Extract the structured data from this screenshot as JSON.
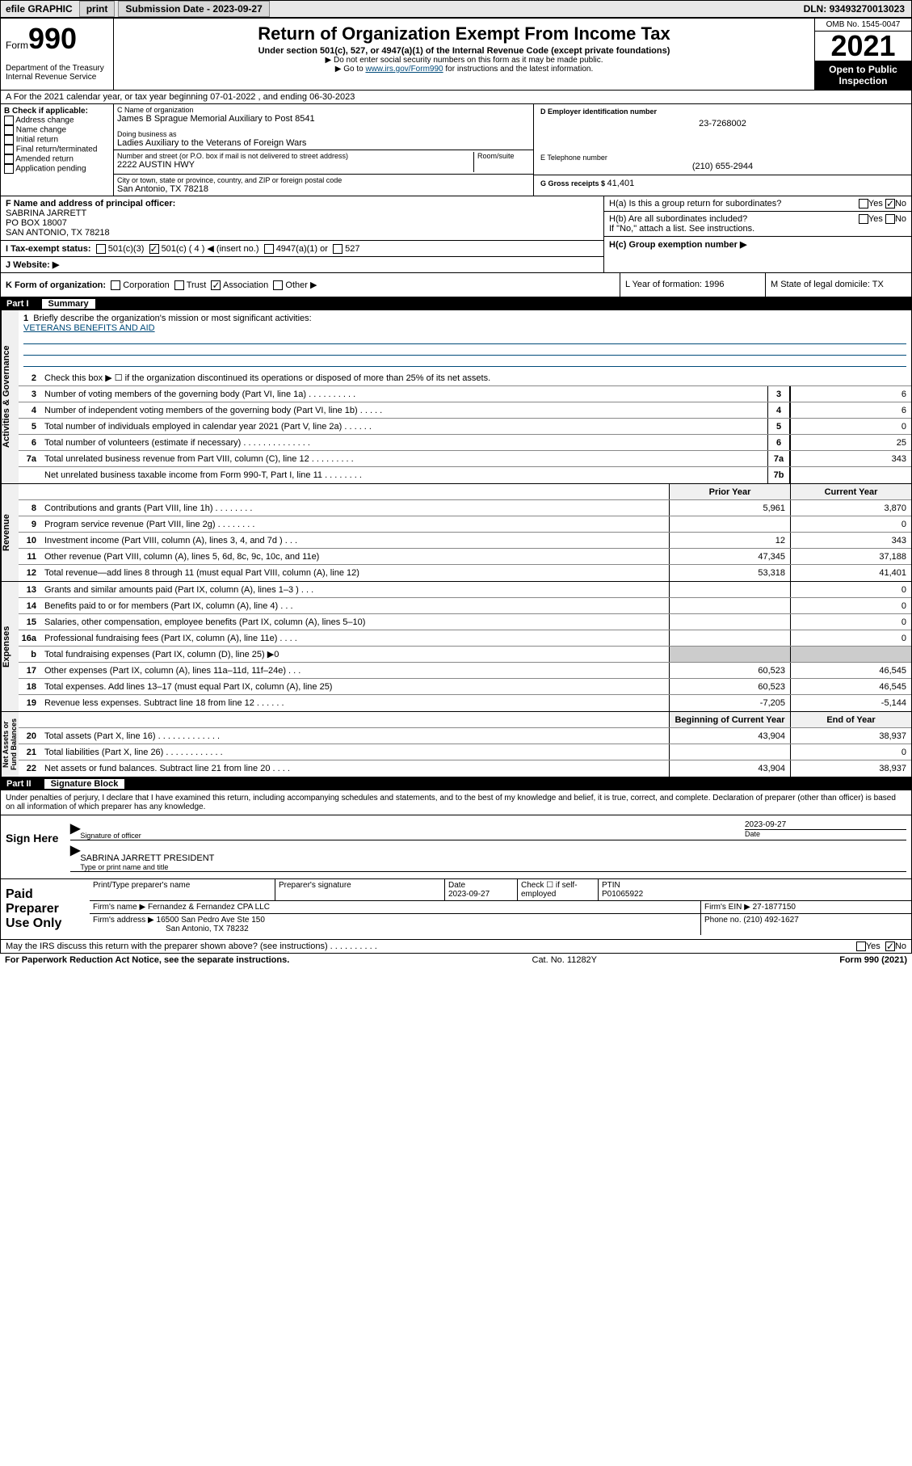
{
  "topbar": {
    "efile": "efile GRAPHIC",
    "print": "print",
    "sub_label": "Submission Date - ",
    "sub_date": "2023-09-27",
    "dln_label": "DLN: ",
    "dln": "93493270013023"
  },
  "header": {
    "form_word": "Form",
    "form_num": "990",
    "dept": "Department of the Treasury\nInternal Revenue Service",
    "title": "Return of Organization Exempt From Income Tax",
    "sub": "Under section 501(c), 527, or 4947(a)(1) of the Internal Revenue Code (except private foundations)",
    "note1": "▶ Do not enter social security numbers on this form as it may be made public.",
    "note2_a": "▶ Go to ",
    "note2_link": "www.irs.gov/Form990",
    "note2_b": " for instructions and the latest information.",
    "omb": "OMB No. 1545-0047",
    "year": "2021",
    "open_pub": "Open to Public Inspection"
  },
  "row_a": "A For the 2021 calendar year, or tax year beginning 07-01-2022  , and ending 06-30-2023",
  "box_b": {
    "hdr": "B Check if applicable:",
    "items": [
      "Address change",
      "Name change",
      "Initial return",
      "Final return/terminated",
      "Amended return",
      "Application pending"
    ]
  },
  "box_c": {
    "name_lbl": "C Name of organization",
    "name": "James B Sprague Memorial Auxiliary to Post 8541",
    "dba_lbl": "Doing business as",
    "dba": "Ladies Auxiliary to the Veterans of Foreign Wars",
    "addr_lbl": "Number and street (or P.O. box if mail is not delivered to street address)",
    "room_lbl": "Room/suite",
    "addr": "2222 AUSTIN HWY",
    "city_lbl": "City or town, state or province, country, and ZIP or foreign postal code",
    "city": "San Antonio, TX  78218"
  },
  "box_d": {
    "lbl": "D Employer identification number",
    "val": "23-7268002"
  },
  "box_e": {
    "lbl": "E Telephone number",
    "val": "(210) 655-2944"
  },
  "box_g": {
    "lbl": "G Gross receipts $ ",
    "val": "41,401"
  },
  "box_f": {
    "lbl": "F  Name and address of principal officer:",
    "name": "SABRINA JARRETT",
    "l2": "PO BOX 18007",
    "l3": "SAN ANTONIO, TX  78218"
  },
  "box_h": {
    "a": "H(a)  Is this a group return for subordinates?",
    "b": "H(b)  Are all subordinates included?",
    "b2": "If \"No,\" attach a list. See instructions.",
    "c": "H(c)  Group exemption number ▶",
    "yes": "Yes",
    "no": "No"
  },
  "box_i": {
    "lbl": "I  Tax-exempt status:",
    "o1": "501(c)(3)",
    "o2": "501(c) ( 4 ) ◀ (insert no.)",
    "o3": "4947(a)(1) or",
    "o4": "527"
  },
  "box_j": "J  Website: ▶",
  "box_k": {
    "lbl": "K Form of organization:",
    "o1": "Corporation",
    "o2": "Trust",
    "o3": "Association",
    "o4": "Other ▶"
  },
  "box_l": "L Year of formation: 1996",
  "box_m": "M State of legal domicile: TX",
  "part1": {
    "num": "Part I",
    "title": "Summary"
  },
  "vtabs": {
    "ag": "Activities & Governance",
    "rev": "Revenue",
    "exp": "Expenses",
    "na": "Net Assets or\nFund Balances"
  },
  "s1": {
    "l1_lbl": "Briefly describe the organization's mission or most significant activities:",
    "l1_val": "VETERANS BENEFITS AND AID",
    "l2": "Check this box ▶ ☐  if the organization discontinued its operations or disposed of more than 25% of its net assets.",
    "rows": [
      {
        "n": "3",
        "t": "Number of voting members of the governing body (Part VI, line 1a)  .  .  .  .  .  .  .  .  .  .",
        "b": "3",
        "v": "6"
      },
      {
        "n": "4",
        "t": "Number of independent voting members of the governing body (Part VI, line 1b)  .  .  .  .  .",
        "b": "4",
        "v": "6"
      },
      {
        "n": "5",
        "t": "Total number of individuals employed in calendar year 2021 (Part V, line 2a)  .  .  .  .  .  .",
        "b": "5",
        "v": "0"
      },
      {
        "n": "6",
        "t": "Total number of volunteers (estimate if necessary)  .  .  .  .  .  .  .  .  .  .  .  .  .  .",
        "b": "6",
        "v": "25"
      },
      {
        "n": "7a",
        "t": "Total unrelated business revenue from Part VIII, column (C), line 12  .  .  .  .  .  .  .  .  .",
        "b": "7a",
        "v": "343"
      },
      {
        "n": "",
        "t": "Net unrelated business taxable income from Form 990-T, Part I, line 11  .  .  .  .  .  .  .  .",
        "b": "7b",
        "v": ""
      }
    ],
    "col_hdr_prior": "Prior Year",
    "col_hdr_curr": "Current Year",
    "rev_rows": [
      {
        "n": "8",
        "t": "Contributions and grants (Part VIII, line 1h)  .  .  .  .  .  .  .  .",
        "p": "5,961",
        "c": "3,870"
      },
      {
        "n": "9",
        "t": "Program service revenue (Part VIII, line 2g)  .  .  .  .  .  .  .  .",
        "p": "",
        "c": "0"
      },
      {
        "n": "10",
        "t": "Investment income (Part VIII, column (A), lines 3, 4, and 7d )  .  .  .",
        "p": "12",
        "c": "343"
      },
      {
        "n": "11",
        "t": "Other revenue (Part VIII, column (A), lines 5, 6d, 8c, 9c, 10c, and 11e)",
        "p": "47,345",
        "c": "37,188"
      },
      {
        "n": "12",
        "t": "Total revenue—add lines 8 through 11 (must equal Part VIII, column (A), line 12)",
        "p": "53,318",
        "c": "41,401"
      }
    ],
    "exp_rows": [
      {
        "n": "13",
        "t": "Grants and similar amounts paid (Part IX, column (A), lines 1–3 )  .  .  .",
        "p": "",
        "c": "0"
      },
      {
        "n": "14",
        "t": "Benefits paid to or for members (Part IX, column (A), line 4)  .  .  .",
        "p": "",
        "c": "0"
      },
      {
        "n": "15",
        "t": "Salaries, other compensation, employee benefits (Part IX, column (A), lines 5–10)",
        "p": "",
        "c": "0"
      },
      {
        "n": "16a",
        "t": "Professional fundraising fees (Part IX, column (A), line 11e)  .  .  .  .",
        "p": "",
        "c": "0"
      },
      {
        "n": "b",
        "t": "Total fundraising expenses (Part IX, column (D), line 25) ▶0",
        "p": "grey",
        "c": "grey"
      },
      {
        "n": "17",
        "t": "Other expenses (Part IX, column (A), lines 11a–11d, 11f–24e)  .  .  .",
        "p": "60,523",
        "c": "46,545"
      },
      {
        "n": "18",
        "t": "Total expenses. Add lines 13–17 (must equal Part IX, column (A), line 25)",
        "p": "60,523",
        "c": "46,545"
      },
      {
        "n": "19",
        "t": "Revenue less expenses. Subtract line 18 from line 12  .  .  .  .  .  .",
        "p": "-7,205",
        "c": "-5,144"
      }
    ],
    "na_hdr_b": "Beginning of Current Year",
    "na_hdr_e": "End of Year",
    "na_rows": [
      {
        "n": "20",
        "t": "Total assets (Part X, line 16)  .  .  .  .  .  .  .  .  .  .  .  .  .",
        "p": "43,904",
        "c": "38,937"
      },
      {
        "n": "21",
        "t": "Total liabilities (Part X, line 26)  .  .  .  .  .  .  .  .  .  .  .  .",
        "p": "",
        "c": "0"
      },
      {
        "n": "22",
        "t": "Net assets or fund balances. Subtract line 21 from line 20  .  .  .  .",
        "p": "43,904",
        "c": "38,937"
      }
    ]
  },
  "part2": {
    "num": "Part II",
    "title": "Signature Block"
  },
  "sig": {
    "intro": "Under penalties of perjury, I declare that I have examined this return, including accompanying schedules and statements, and to the best of my knowledge and belief, it is true, correct, and complete. Declaration of preparer (other than officer) is based on all information of which preparer has any knowledge.",
    "sign_here": "Sign Here",
    "sig_lbl": "Signature of officer",
    "date_lbl": "Date",
    "date": "2023-09-27",
    "name": "SABRINA JARRETT  PRESIDENT",
    "name_lbl": "Type or print name and title"
  },
  "prep": {
    "hdr": "Paid Preparer Use Only",
    "c1": "Print/Type preparer's name",
    "c2": "Preparer's signature",
    "c3_lbl": "Date",
    "c3": "2023-09-27",
    "c4": "Check ☐ if self-employed",
    "c5_lbl": "PTIN",
    "c5": "P01065922",
    "firm_lbl": "Firm's name    ▶ ",
    "firm": "Fernandez & Fernandez CPA LLC",
    "ein_lbl": "Firm's EIN ▶ ",
    "ein": "27-1877150",
    "addr_lbl": "Firm's address ▶ ",
    "addr1": "16500 San Pedro Ave Ste 150",
    "addr2": "San Antonio, TX  78232",
    "phone_lbl": "Phone no. ",
    "phone": "(210) 492-1627"
  },
  "footer": {
    "q": "May the IRS discuss this return with the preparer shown above? (see instructions)  .  .  .  .  .  .  .  .  .  .",
    "yes": "Yes",
    "no": "No",
    "pra": "For Paperwork Reduction Act Notice, see the separate instructions.",
    "cat": "Cat. No. 11282Y",
    "form": "Form 990 (2021)"
  }
}
